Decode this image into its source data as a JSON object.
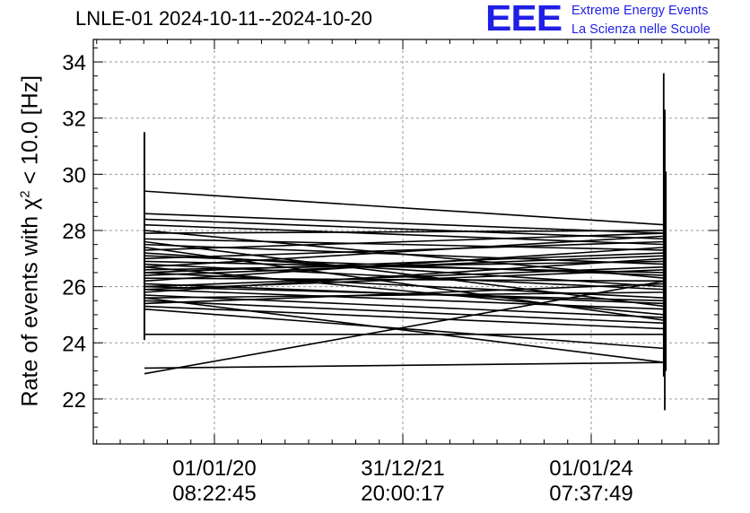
{
  "header": {
    "title": "LNLE-01 2024-10-11--2024-10-20",
    "logo_text": "EEE",
    "logo_line1": "Extreme Energy Events",
    "logo_line2": "La Scienza nelle Scuole"
  },
  "axes": {
    "ylabel_prefix": "Rate of events with χ",
    "ylabel_sup": "2",
    "ylabel_suffix": " < 10.0 [Hz]"
  },
  "colors": {
    "logo": "#1f1fe6",
    "grid": "#9a9a9a",
    "data": "#000000"
  },
  "chart_data": {
    "type": "line",
    "title": "LNLE-01 2024-10-11--2024-10-20",
    "xlabel": "",
    "ylabel": "Rate of events with χ² < 10.0 [Hz]",
    "ylim": [
      20.4,
      34.8
    ],
    "yticks": [
      22,
      24,
      26,
      28,
      30,
      32,
      34
    ],
    "x_tick_labels": [
      {
        "date": "01/01/20",
        "time": "08:22:45"
      },
      {
        "date": "31/12/21",
        "time": "20:00:17"
      },
      {
        "date": "01/01/24",
        "time": "07:37:49"
      }
    ],
    "grid": true,
    "x_points": [
      "left",
      "right"
    ],
    "series_values": [
      [
        29.4,
        28.2
      ],
      [
        28.6,
        27.9
      ],
      [
        28.4,
        27.7
      ],
      [
        28.2,
        27.5
      ],
      [
        28.0,
        26.3
      ],
      [
        27.9,
        28.0
      ],
      [
        27.7,
        27.3
      ],
      [
        27.5,
        26.8
      ],
      [
        27.3,
        27.9
      ],
      [
        27.2,
        26.0
      ],
      [
        27.0,
        27.6
      ],
      [
        26.9,
        26.5
      ],
      [
        26.8,
        25.9
      ],
      [
        26.7,
        27.8
      ],
      [
        26.6,
        26.9
      ],
      [
        26.5,
        25.6
      ],
      [
        26.4,
        27.1
      ],
      [
        26.3,
        26.2
      ],
      [
        26.2,
        27.4
      ],
      [
        26.1,
        25.4
      ],
      [
        26.0,
        26.7
      ],
      [
        25.9,
        25.2
      ],
      [
        25.8,
        27.0
      ],
      [
        25.7,
        24.9
      ],
      [
        25.6,
        25.8
      ],
      [
        25.5,
        24.7
      ],
      [
        25.4,
        26.1
      ],
      [
        25.3,
        24.5
      ],
      [
        25.2,
        23.8
      ],
      [
        25.6,
        23.3
      ],
      [
        25.9,
        26.6
      ],
      [
        26.7,
        25.0
      ],
      [
        27.1,
        26.4
      ],
      [
        27.6,
        25.3
      ],
      [
        24.3,
        24.3
      ],
      [
        23.1,
        23.3
      ],
      [
        22.9,
        26.2
      ],
      [
        26.5,
        27.2
      ],
      [
        27.4,
        24.8
      ],
      [
        26.0,
        25.5
      ]
    ],
    "error_bars": {
      "left": {
        "low": 24.1,
        "high": 31.5
      },
      "right": [
        {
          "low": 22.8,
          "high": 33.6
        },
        {
          "low": 21.6,
          "high": 32.3
        },
        {
          "low": 23.0,
          "high": 30.1
        }
      ]
    }
  }
}
